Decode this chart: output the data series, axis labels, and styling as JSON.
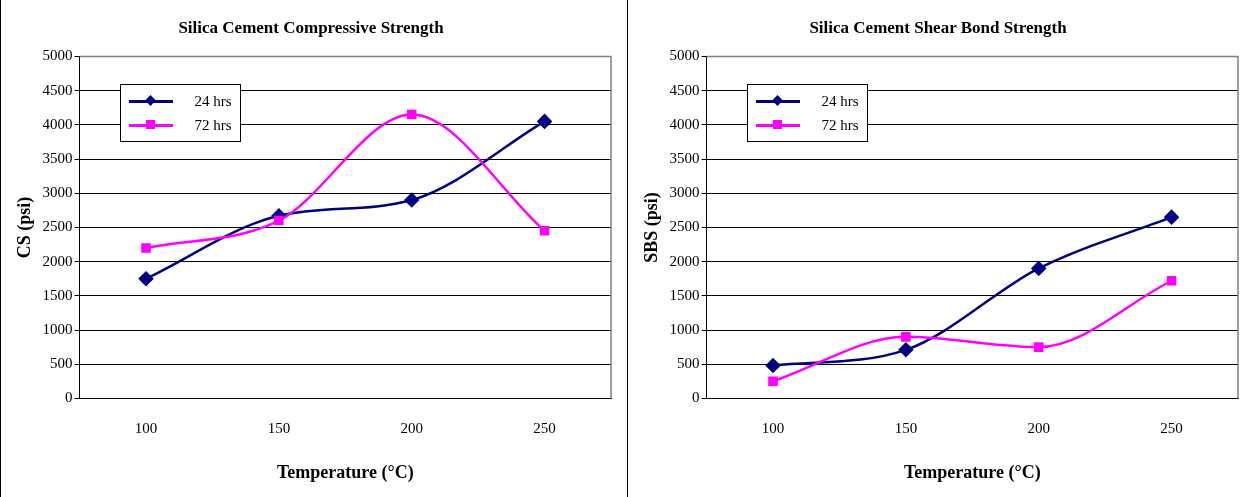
{
  "chart_data": [
    {
      "type": "line",
      "title": "Silica Cement Compressive Strength",
      "xlabel": "Temperature (°C)",
      "ylabel": "CS (psi)",
      "categories": [
        "100",
        "150",
        "200",
        "250"
      ],
      "ylim": [
        0,
        5000
      ],
      "yticks": [
        0,
        500,
        1000,
        1500,
        2000,
        2500,
        3000,
        3500,
        4000,
        4500,
        5000
      ],
      "grid": "y",
      "legend": "top left",
      "series": [
        {
          "name": "24 hrs",
          "color": "#000080",
          "marker": "diamond",
          "values": [
            1750,
            2670,
            2900,
            4050
          ]
        },
        {
          "name": "72 hrs",
          "color": "#ff00ff",
          "marker": "square",
          "values": [
            2200,
            2600,
            4150,
            2450
          ]
        }
      ]
    },
    {
      "type": "line",
      "title": "Silica Cement Shear Bond Strength",
      "xlabel": "Temperature (°C)",
      "ylabel": "SBS (psi)",
      "categories": [
        "100",
        "150",
        "200",
        "250"
      ],
      "ylim": [
        0,
        5000
      ],
      "yticks": [
        0,
        500,
        1000,
        1500,
        2000,
        2500,
        3000,
        3500,
        4000,
        4500,
        5000
      ],
      "grid": "y",
      "legend": "top left",
      "series": [
        {
          "name": "24 hrs",
          "color": "#000080",
          "marker": "diamond",
          "values": [
            480,
            710,
            1900,
            2650
          ]
        },
        {
          "name": "72 hrs",
          "color": "#ff00ff",
          "marker": "square",
          "values": [
            250,
            900,
            750,
            1720
          ]
        }
      ]
    }
  ]
}
